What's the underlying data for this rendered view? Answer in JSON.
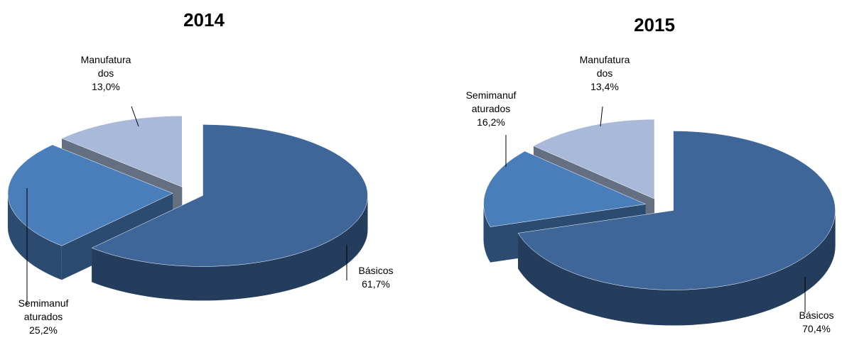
{
  "chart_data": [
    {
      "type": "pie3d",
      "title": "2014",
      "categories": [
        "Básicos",
        "Semimanufaturados",
        "Manufaturados"
      ],
      "values": [
        61.7,
        25.2,
        13.0
      ],
      "value_labels": [
        "61,7%",
        "25,2%",
        "13,0%"
      ],
      "colors": [
        "#3f6699",
        "#4a7ebb",
        "#a8b9d9"
      ]
    },
    {
      "type": "pie3d",
      "title": "2015",
      "categories": [
        "Básicos",
        "Semimanufaturados",
        "Manufaturados"
      ],
      "values": [
        70.4,
        16.2,
        13.4
      ],
      "value_labels": [
        "70,4%",
        "16,2%",
        "13,4%"
      ],
      "colors": [
        "#3f6699",
        "#4a7ebb",
        "#a8b9d9"
      ]
    }
  ]
}
